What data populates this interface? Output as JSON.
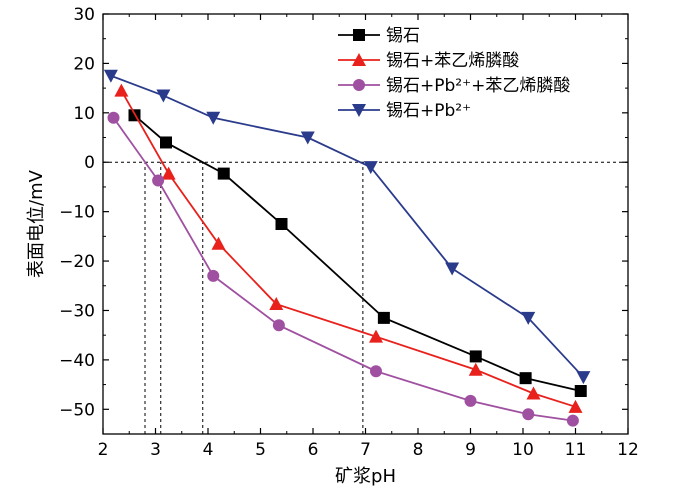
{
  "chart_data": {
    "type": "line",
    "xlabel": "矿浆pH",
    "ylabel": "表面电位/mV",
    "xlim": [
      2,
      12
    ],
    "ylim": [
      -55,
      30
    ],
    "xticks": [
      "2",
      "3",
      "4",
      "5",
      "6",
      "7",
      "8",
      "9",
      "10",
      "11",
      "12"
    ],
    "yticks": [
      "30",
      "20",
      "10",
      "0",
      "−10",
      "−20",
      "−30",
      "−40",
      "−50"
    ],
    "ytick_values": [
      30,
      20,
      10,
      0,
      -10,
      -20,
      -30,
      -40,
      -50
    ],
    "grid": false,
    "legend_position": "top-right",
    "zero_line": true,
    "reference_lines": [
      {
        "x": 2.8,
        "y_from": -55,
        "y_to": 0
      },
      {
        "x": 3.1,
        "y_from": -55,
        "y_to": 0
      },
      {
        "x": 3.9,
        "y_from": -55,
        "y_to": 0
      },
      {
        "x": 6.95,
        "y_from": -55,
        "y_to": 0
      }
    ],
    "series": [
      {
        "name": "锡石",
        "color": "#000000",
        "marker": "square",
        "x": [
          2.6,
          3.2,
          4.3,
          5.4,
          7.35,
          9.1,
          10.05,
          11.1
        ],
        "y": [
          9.5,
          4,
          -2.3,
          -12.5,
          -31.5,
          -39.3,
          -43.7,
          -46.3
        ]
      },
      {
        "name": "锡石+苯乙烯膦酸",
        "color": "#e8211c",
        "marker": "triangle-up",
        "x": [
          2.35,
          3.25,
          4.2,
          5.3,
          7.2,
          9.1,
          10.2,
          11.0
        ],
        "y": [
          14.5,
          -2.3,
          -16.5,
          -28.7,
          -35.3,
          -42,
          -46.8,
          -49.5
        ]
      },
      {
        "name": "锡石+Pb²⁺+苯乙烯膦酸",
        "color": "#a050a0",
        "marker": "circle",
        "x": [
          2.2,
          3.05,
          4.1,
          5.35,
          7.2,
          9.0,
          10.1,
          10.95
        ],
        "y": [
          9,
          -3.7,
          -23,
          -33,
          -42.3,
          -48.3,
          -51,
          -52.3
        ]
      },
      {
        "name": "锡石+Pb²⁺",
        "color": "#2b3b8c",
        "marker": "triangle-down",
        "x": [
          2.15,
          3.15,
          4.1,
          5.9,
          7.1,
          8.65,
          10.1,
          11.15
        ],
        "y": [
          17.5,
          13.5,
          9,
          5,
          -1,
          -21.5,
          -31.5,
          -43.5
        ]
      }
    ]
  }
}
